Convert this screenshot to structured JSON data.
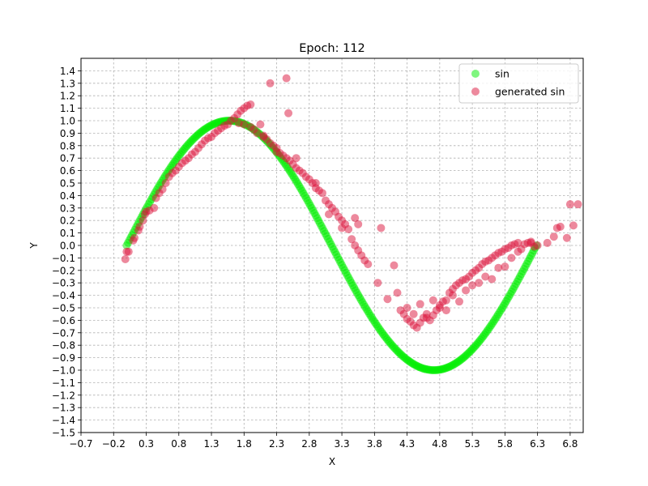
{
  "chart_data": {
    "type": "scatter",
    "title": "Epoch: 112",
    "xlabel": "X",
    "ylabel": "Y",
    "xlim": [
      -0.7,
      7.0
    ],
    "ylim": [
      -1.5,
      1.5
    ],
    "xticks": [
      -0.7,
      -0.2,
      0.3,
      0.8,
      1.3,
      1.8,
      2.3,
      2.8,
      3.3,
      3.8,
      4.3,
      4.8,
      5.3,
      5.8,
      6.3,
      6.8
    ],
    "xtick_labels": [
      "−0.7",
      "−0.2",
      "0.3",
      "0.8",
      "1.3",
      "1.8",
      "2.3",
      "2.8",
      "3.3",
      "3.8",
      "4.3",
      "4.8",
      "5.3",
      "5.8",
      "6.3",
      "6.8"
    ],
    "yticks": [
      -1.5,
      -1.4,
      -1.3,
      -1.2,
      -1.1,
      -1.0,
      -0.9,
      -0.8,
      -0.7,
      -0.6,
      -0.5,
      -0.4,
      -0.3,
      -0.2,
      -0.1,
      0.0,
      0.1,
      0.2,
      0.3,
      0.4,
      0.5,
      0.6,
      0.7,
      0.8,
      0.9,
      1.0,
      1.1,
      1.2,
      1.3,
      1.4
    ],
    "ytick_labels": [
      "−1.5",
      "−1.4",
      "−1.3",
      "−1.2",
      "−1.1",
      "−1.0",
      "−0.9",
      "−0.8",
      "−0.7",
      "−0.6",
      "−0.5",
      "−0.4",
      "−0.3",
      "−0.2",
      "−0.1",
      "0.0",
      "0.1",
      "0.2",
      "0.3",
      "0.4",
      "0.5",
      "0.6",
      "0.7",
      "0.8",
      "0.9",
      "1.0",
      "1.1",
      "1.2",
      "1.3",
      "1.4"
    ],
    "grid": true,
    "legend_position": "top-right",
    "series": [
      {
        "name": "sin",
        "color": "#00ee00",
        "x_range": [
          0.0,
          6.2832
        ],
        "count": 300,
        "points": []
      },
      {
        "name": "generated sin",
        "color": "#dc143c",
        "points": [
          [
            -0.02,
            -0.11
          ],
          [
            0.0,
            -0.05
          ],
          [
            0.03,
            -0.05
          ],
          [
            0.1,
            0.04
          ],
          [
            0.12,
            0.06
          ],
          [
            0.18,
            0.12
          ],
          [
            0.2,
            0.15
          ],
          [
            0.25,
            0.2
          ],
          [
            0.28,
            0.25
          ],
          [
            0.3,
            0.27
          ],
          [
            0.35,
            0.28
          ],
          [
            0.42,
            0.3
          ],
          [
            0.45,
            0.38
          ],
          [
            0.5,
            0.42
          ],
          [
            0.55,
            0.45
          ],
          [
            0.6,
            0.5
          ],
          [
            0.65,
            0.55
          ],
          [
            0.7,
            0.58
          ],
          [
            0.75,
            0.6
          ],
          [
            0.8,
            0.63
          ],
          [
            0.85,
            0.66
          ],
          [
            0.9,
            0.68
          ],
          [
            0.95,
            0.7
          ],
          [
            1.0,
            0.73
          ],
          [
            1.05,
            0.75
          ],
          [
            1.1,
            0.78
          ],
          [
            1.15,
            0.81
          ],
          [
            1.2,
            0.84
          ],
          [
            1.25,
            0.86
          ],
          [
            1.3,
            0.87
          ],
          [
            1.35,
            0.9
          ],
          [
            1.4,
            0.92
          ],
          [
            1.45,
            0.94
          ],
          [
            1.5,
            0.96
          ],
          [
            1.55,
            0.97
          ],
          [
            1.6,
            1.0
          ],
          [
            1.65,
            1.02
          ],
          [
            1.7,
            1.05
          ],
          [
            1.75,
            1.08
          ],
          [
            1.8,
            1.1
          ],
          [
            1.85,
            1.12
          ],
          [
            1.9,
            1.13
          ],
          [
            1.72,
            0.98
          ],
          [
            1.8,
            0.97
          ],
          [
            1.9,
            0.95
          ],
          [
            1.95,
            0.93
          ],
          [
            2.0,
            0.9
          ],
          [
            2.05,
            0.97
          ],
          [
            2.1,
            0.88
          ],
          [
            2.15,
            0.85
          ],
          [
            2.2,
            0.82
          ],
          [
            2.25,
            0.8
          ],
          [
            2.3,
            0.78
          ],
          [
            2.35,
            0.74
          ],
          [
            2.4,
            0.72
          ],
          [
            2.45,
            0.7
          ],
          [
            2.5,
            0.68
          ],
          [
            2.55,
            0.65
          ],
          [
            2.6,
            0.62
          ],
          [
            2.65,
            0.6
          ],
          [
            2.7,
            0.58
          ],
          [
            2.75,
            0.55
          ],
          [
            2.8,
            0.53
          ],
          [
            2.85,
            0.5
          ],
          [
            2.9,
            0.46
          ],
          [
            2.95,
            0.44
          ],
          [
            3.0,
            0.42
          ],
          [
            3.05,
            0.36
          ],
          [
            3.1,
            0.33
          ],
          [
            3.15,
            0.3
          ],
          [
            3.2,
            0.27
          ],
          [
            3.25,
            0.23
          ],
          [
            3.3,
            0.2
          ],
          [
            3.35,
            0.17
          ],
          [
            3.4,
            0.13
          ],
          [
            3.45,
            0.05
          ],
          [
            3.5,
            0.0
          ],
          [
            3.55,
            -0.04
          ],
          [
            3.6,
            -0.08
          ],
          [
            3.65,
            -0.12
          ],
          [
            3.7,
            -0.15
          ],
          [
            3.5,
            0.22
          ],
          [
            3.55,
            0.17
          ],
          [
            3.85,
            -0.3
          ],
          [
            3.9,
            0.14
          ],
          [
            4.0,
            -0.43
          ],
          [
            4.1,
            -0.16
          ],
          [
            4.15,
            -0.38
          ],
          [
            4.2,
            -0.52
          ],
          [
            4.25,
            -0.55
          ],
          [
            4.3,
            -0.59
          ],
          [
            4.35,
            -0.61
          ],
          [
            4.4,
            -0.64
          ],
          [
            4.45,
            -0.66
          ],
          [
            4.5,
            -0.62
          ],
          [
            4.55,
            -0.58
          ],
          [
            4.6,
            -0.55
          ],
          [
            4.65,
            -0.6
          ],
          [
            4.7,
            -0.56
          ],
          [
            4.75,
            -0.52
          ],
          [
            4.8,
            -0.48
          ],
          [
            4.85,
            -0.45
          ],
          [
            4.9,
            -0.44
          ],
          [
            4.95,
            -0.38
          ],
          [
            5.0,
            -0.35
          ],
          [
            5.05,
            -0.32
          ],
          [
            5.1,
            -0.3
          ],
          [
            5.15,
            -0.28
          ],
          [
            5.2,
            -0.27
          ],
          [
            5.25,
            -0.25
          ],
          [
            5.3,
            -0.22
          ],
          [
            5.35,
            -0.2
          ],
          [
            5.4,
            -0.18
          ],
          [
            5.45,
            -0.15
          ],
          [
            5.5,
            -0.13
          ],
          [
            5.55,
            -0.12
          ],
          [
            5.6,
            -0.1
          ],
          [
            5.65,
            -0.08
          ],
          [
            5.7,
            -0.06
          ],
          [
            5.75,
            -0.05
          ],
          [
            5.8,
            -0.03
          ],
          [
            5.85,
            -0.02
          ],
          [
            5.9,
            0.0
          ],
          [
            5.95,
            0.01
          ],
          [
            6.0,
            0.02
          ],
          [
            6.1,
            0.01
          ],
          [
            6.15,
            0.02
          ],
          [
            6.2,
            0.02
          ],
          [
            6.25,
            -0.01
          ],
          [
            6.3,
            0.0
          ],
          [
            6.45,
            0.02
          ],
          [
            6.55,
            0.07
          ],
          [
            6.6,
            0.14
          ],
          [
            6.65,
            0.15
          ],
          [
            6.75,
            0.06
          ],
          [
            6.8,
            0.33
          ],
          [
            6.85,
            0.16
          ],
          [
            6.92,
            0.33
          ],
          [
            4.3,
            -0.5
          ],
          [
            4.5,
            -0.47
          ],
          [
            4.7,
            -0.44
          ],
          [
            4.9,
            -0.52
          ],
          [
            5.0,
            -0.4
          ],
          [
            5.2,
            -0.36
          ],
          [
            5.4,
            -0.3
          ],
          [
            5.6,
            -0.27
          ],
          [
            5.8,
            -0.17
          ],
          [
            6.0,
            -0.05
          ],
          [
            6.2,
            0.03
          ],
          [
            2.2,
            1.3
          ],
          [
            2.45,
            1.34
          ],
          [
            2.48,
            1.06
          ],
          [
            2.1,
            0.87
          ],
          [
            2.3,
            0.75
          ],
          [
            2.6,
            0.7
          ],
          [
            2.9,
            0.5
          ],
          [
            3.1,
            0.25
          ],
          [
            3.3,
            0.14
          ],
          [
            4.4,
            -0.55
          ],
          [
            4.6,
            -0.58
          ],
          [
            4.8,
            -0.5
          ],
          [
            5.1,
            -0.45
          ],
          [
            5.3,
            -0.32
          ],
          [
            5.5,
            -0.25
          ],
          [
            5.7,
            -0.18
          ],
          [
            5.9,
            -0.1
          ],
          [
            6.05,
            -0.03
          ]
        ]
      }
    ]
  }
}
